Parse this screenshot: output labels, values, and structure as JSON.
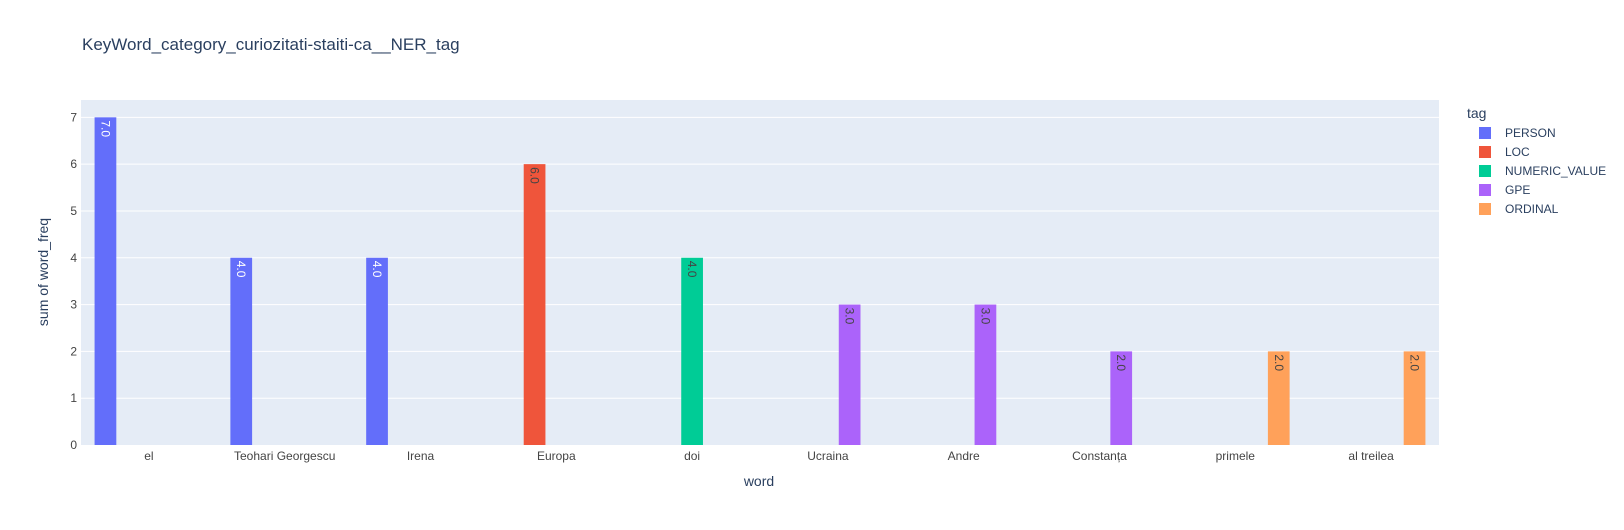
{
  "chart_data": {
    "type": "bar",
    "title": "KeyWord_category_curiozitati-staiti-ca__NER_tag",
    "xlabel": "word",
    "ylabel": "sum of word_freq",
    "ylim": [
      0,
      7.37
    ],
    "yticks": [
      0,
      1,
      2,
      3,
      4,
      5,
      6,
      7
    ],
    "grid": true,
    "barmode": "group",
    "legend_title": "tag",
    "legend_position": "right",
    "categories": [
      "el",
      "Teohari Georgescu",
      "Irena",
      "Europa",
      "doi",
      "Ucraina",
      "Andre",
      "Constanța",
      "primele",
      "al treilea"
    ],
    "series": [
      {
        "name": "PERSON",
        "color": "#636efa",
        "label_color": "#ffffff",
        "points": [
          {
            "x": "el",
            "y": 7.0,
            "label": "7.0"
          },
          {
            "x": "Teohari Georgescu",
            "y": 4.0,
            "label": "4.0"
          },
          {
            "x": "Irena",
            "y": 4.0,
            "label": "4.0"
          }
        ]
      },
      {
        "name": "LOC",
        "color": "#EF553B",
        "label_color": "#444444",
        "points": [
          {
            "x": "Europa",
            "y": 6.0,
            "label": "6.0"
          }
        ]
      },
      {
        "name": "NUMERIC_VALUE",
        "color": "#00cc96",
        "label_color": "#444444",
        "points": [
          {
            "x": "doi",
            "y": 4.0,
            "label": "4.0"
          }
        ]
      },
      {
        "name": "GPE",
        "color": "#ab63fa",
        "label_color": "#444444",
        "points": [
          {
            "x": "Ucraina",
            "y": 3.0,
            "label": "3.0"
          },
          {
            "x": "Andre",
            "y": 3.0,
            "label": "3.0"
          },
          {
            "x": "Constanța",
            "y": 2.0,
            "label": "2.0"
          }
        ]
      },
      {
        "name": "ORDINAL",
        "color": "#FFA15A",
        "label_color": "#444444",
        "points": [
          {
            "x": "primele",
            "y": 2.0,
            "label": "2.0"
          },
          {
            "x": "al treilea",
            "y": 2.0,
            "label": "2.0"
          }
        ]
      }
    ]
  },
  "colors": {
    "plot_background": "#e5ecf6",
    "gridline": "#ffffff",
    "text": "#2a3f5f",
    "tick_text": "#444444"
  }
}
